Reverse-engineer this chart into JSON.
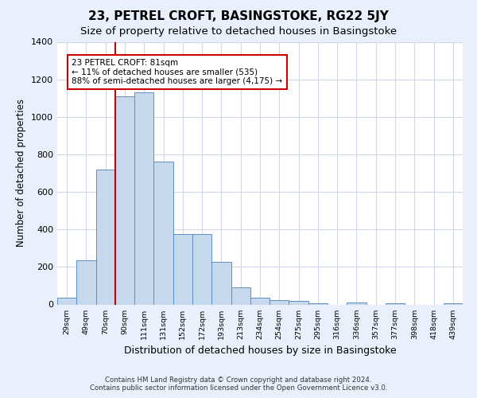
{
  "title": "23, PETREL CROFT, BASINGSTOKE, RG22 5JY",
  "subtitle": "Size of property relative to detached houses in Basingstoke",
  "xlabel": "Distribution of detached houses by size in Basingstoke",
  "ylabel": "Number of detached properties",
  "footer_line1": "Contains HM Land Registry data © Crown copyright and database right 2024.",
  "footer_line2": "Contains public sector information licensed under the Open Government Licence v3.0.",
  "bar_labels": [
    "29sqm",
    "49sqm",
    "70sqm",
    "90sqm",
    "111sqm",
    "131sqm",
    "152sqm",
    "172sqm",
    "193sqm",
    "213sqm",
    "234sqm",
    "254sqm",
    "275sqm",
    "295sqm",
    "316sqm",
    "336sqm",
    "357sqm",
    "377sqm",
    "398sqm",
    "418sqm",
    "439sqm"
  ],
  "bar_values": [
    35,
    235,
    720,
    1110,
    1130,
    760,
    375,
    375,
    225,
    90,
    35,
    25,
    20,
    5,
    0,
    12,
    0,
    5,
    0,
    0,
    5
  ],
  "bar_color": "#c5d8ec",
  "bar_edge_color": "#5b8fc7",
  "property_line_label": "23 PETREL CROFT: 81sqm",
  "annotation_line1": "← 11% of detached houses are smaller (535)",
  "annotation_line2": "88% of semi-detached houses are larger (4,175) →",
  "annotation_box_color": "#cc0000",
  "red_line_x": 2.5,
  "ylim": [
    0,
    1400
  ],
  "yticks": [
    0,
    200,
    400,
    600,
    800,
    1000,
    1200,
    1400
  ],
  "bg_color": "#eaf0fb",
  "plot_bg_color": "#ffffff",
  "grid_color": "#d0d8e8",
  "title_fontsize": 11,
  "subtitle_fontsize": 9.5,
  "xlabel_fontsize": 9,
  "ylabel_fontsize": 8.5
}
